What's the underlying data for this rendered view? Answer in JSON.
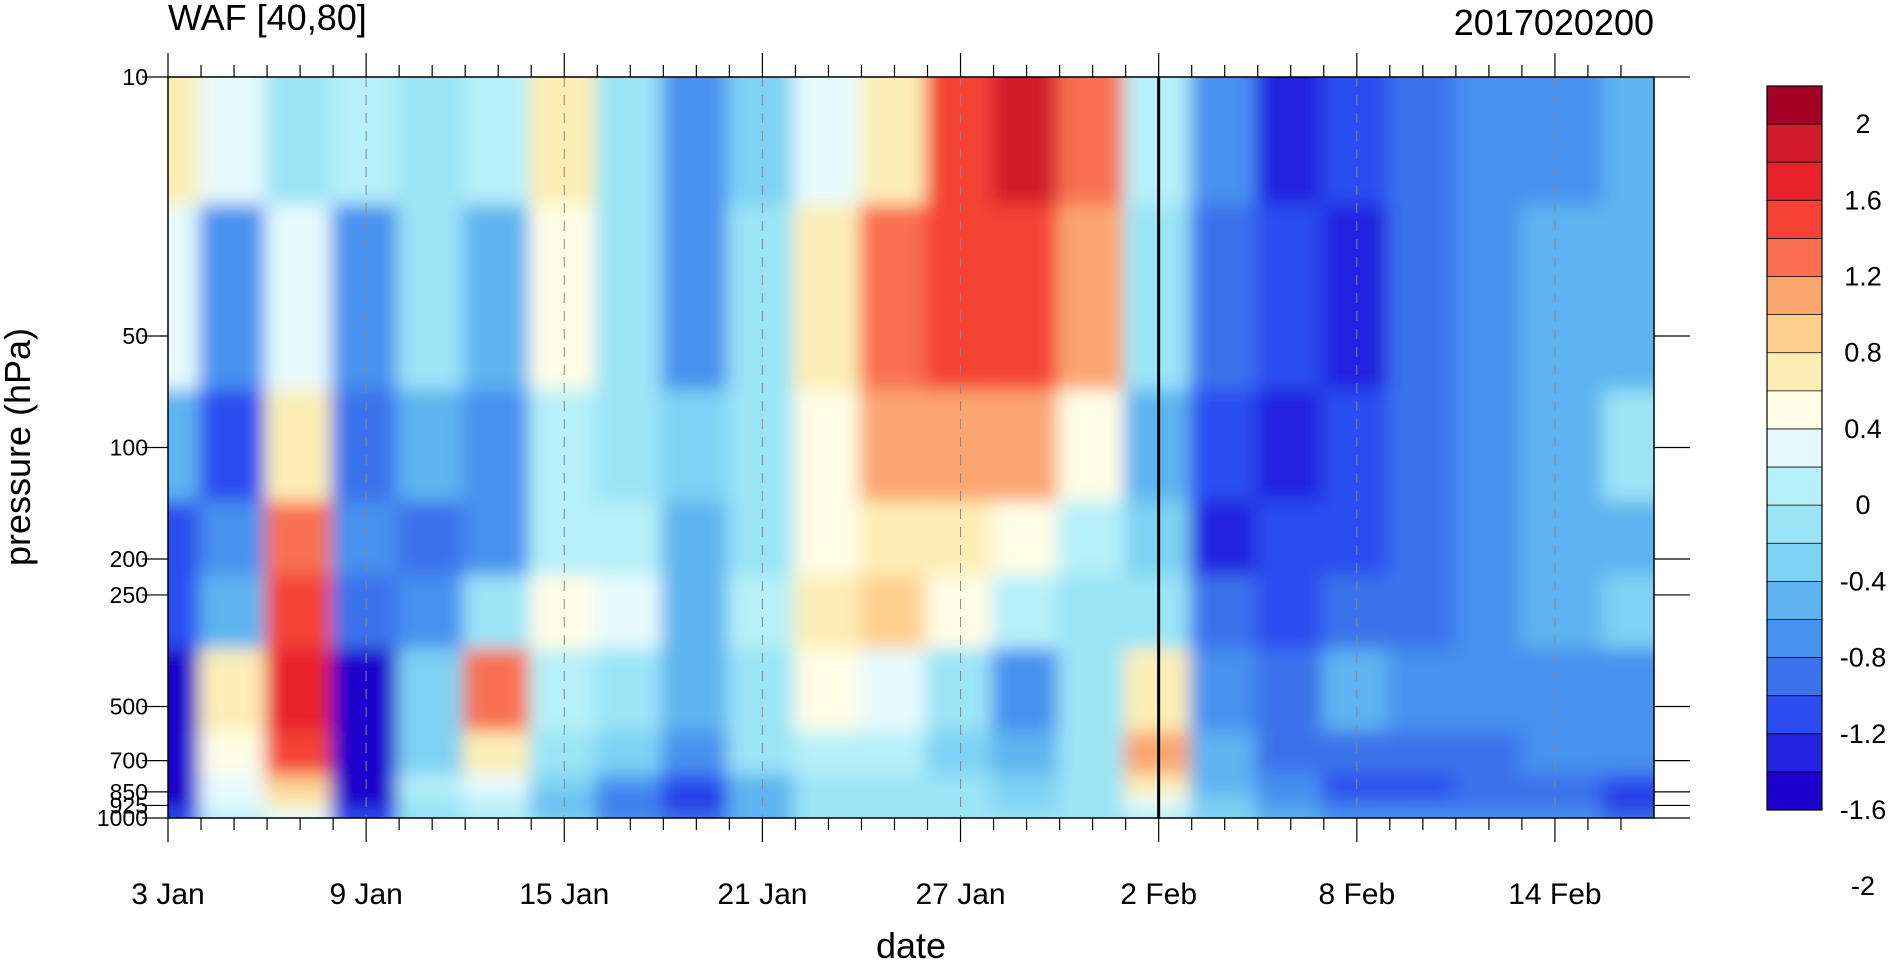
{
  "chart_data": {
    "type": "heatmap",
    "title": "WAF [40,80]",
    "subtitle": "2017020200",
    "xlabel": "date",
    "ylabel": "pressure (hPa)",
    "x_tick_labels": [
      "3 Jan",
      "9 Jan",
      "15 Jan",
      "21 Jan",
      "27 Jan",
      "2 Feb",
      "8 Feb",
      "14 Feb"
    ],
    "x_range_days_from_3jan": [
      0,
      45
    ],
    "y_scale": "log",
    "y_reversed": true,
    "y_range": [
      10,
      1000
    ],
    "y_tick_labels": [
      "10",
      "50",
      "100",
      "200",
      "250",
      "500",
      "700",
      "850",
      "925",
      "1000"
    ],
    "y_levels": [
      10,
      50,
      100,
      200,
      250,
      500,
      700,
      850,
      925,
      1000
    ],
    "analysis_date_line": "2 Feb",
    "colorbar": {
      "labels": [
        "2",
        "1.6",
        "1.2",
        "0.8",
        "0.4",
        "0",
        "-0.4",
        "-0.8",
        "-1.2",
        "-1.6",
        "-2"
      ],
      "label_values": [
        2,
        1.6,
        1.2,
        0.8,
        0.4,
        0,
        -0.4,
        -0.8,
        -1.2,
        -1.6,
        -2
      ],
      "colors": [
        "#a50026",
        "#d21c2c",
        "#e8222b",
        "#f44336",
        "#f8704f",
        "#fba56f",
        "#fdd08f",
        "#fdeeb5",
        "#fffde6",
        "#e6fafd",
        "#b6f0f8",
        "#9ae4f6",
        "#7ed2f3",
        "#5db4f0",
        "#4791ef",
        "#3a72eb",
        "#2b4df0",
        "#2424e0",
        "#1e00cc"
      ]
    },
    "x_days": [
      0,
      2,
      4,
      6,
      8,
      10,
      12,
      14,
      16,
      18,
      20,
      22,
      24,
      26,
      28,
      30,
      32,
      34,
      36,
      38,
      40,
      42,
      45
    ],
    "series": [
      {
        "level": 10,
        "values": [
          0.9,
          0.4,
          0.0,
          0.2,
          0.1,
          0.2,
          0.9,
          0.0,
          -0.6,
          -0.2,
          0.4,
          0.8,
          1.6,
          2.1,
          1.5,
          0.3,
          -0.5,
          -1.2,
          -0.9,
          -0.7,
          -0.6,
          -0.5,
          -0.4
        ]
      },
      {
        "level": 50,
        "values": [
          0.4,
          -0.6,
          0.4,
          -0.6,
          0.0,
          -0.4,
          0.6,
          0.1,
          -0.5,
          0.1,
          0.8,
          1.4,
          1.6,
          1.6,
          1.3,
          0.0,
          -0.7,
          -0.9,
          -1.1,
          -0.8,
          -0.5,
          -0.4,
          -0.3
        ]
      },
      {
        "level": 100,
        "values": [
          -0.4,
          -0.9,
          0.8,
          -0.8,
          -0.4,
          -0.6,
          0.2,
          0.0,
          -0.2,
          0.0,
          0.6,
          1.2,
          1.3,
          1.2,
          0.6,
          -0.3,
          -1.0,
          -1.1,
          -1.0,
          -0.8,
          -0.5,
          -0.4,
          0.0
        ]
      },
      {
        "level": 200,
        "values": [
          -0.9,
          -0.5,
          1.4,
          -0.6,
          -0.7,
          -0.5,
          0.3,
          0.2,
          -0.4,
          0.0,
          0.6,
          0.9,
          0.8,
          0.6,
          0.2,
          -0.2,
          -1.1,
          -1.0,
          -1.0,
          -0.8,
          -0.5,
          -0.4,
          -0.3
        ]
      },
      {
        "level": 250,
        "values": [
          -1.0,
          -0.4,
          1.6,
          -0.8,
          -0.5,
          0.1,
          0.6,
          0.4,
          -0.3,
          0.2,
          0.8,
          1.1,
          0.6,
          0.3,
          0.0,
          0.0,
          -0.8,
          -1.0,
          -0.8,
          -0.7,
          -0.5,
          -0.4,
          -0.2
        ]
      },
      {
        "level": 500,
        "values": [
          -1.4,
          0.9,
          1.9,
          -1.4,
          -0.2,
          1.4,
          0.3,
          0.0,
          -0.4,
          0.1,
          0.6,
          0.5,
          0.1,
          -0.6,
          0.1,
          0.9,
          -0.5,
          -0.8,
          -0.3,
          -0.6,
          -0.5,
          -0.5,
          -0.6
        ]
      },
      {
        "level": 700,
        "values": [
          -1.5,
          0.7,
          1.7,
          -1.4,
          -0.1,
          0.9,
          0.1,
          -0.2,
          -0.6,
          0.0,
          0.3,
          0.2,
          -0.1,
          -0.4,
          0.0,
          1.3,
          -0.4,
          -0.7,
          -0.8,
          -0.8,
          -0.7,
          -0.6,
          -0.6
        ]
      },
      {
        "level": 850,
        "values": [
          -1.6,
          0.5,
          1.0,
          -1.3,
          0.2,
          0.5,
          -0.2,
          -0.6,
          -1.0,
          -0.3,
          0.1,
          0.0,
          0.0,
          -0.2,
          0.0,
          0.8,
          -0.3,
          -0.6,
          -0.9,
          -0.9,
          -0.8,
          -0.7,
          -1.0
        ]
      },
      {
        "level": 925,
        "values": [
          -1.3,
          0.4,
          0.8,
          -1.5,
          0.1,
          0.3,
          -0.3,
          -0.7,
          -1.2,
          -0.4,
          0.0,
          0.1,
          0.0,
          -0.1,
          0.1,
          0.5,
          -0.2,
          -0.5,
          -0.7,
          -0.8,
          -0.8,
          -0.8,
          -1.2
        ]
      },
      {
        "level": 1000,
        "values": [
          -1.0,
          0.2,
          0.5,
          -1.0,
          0.0,
          0.2,
          -0.2,
          -0.5,
          -0.8,
          -0.3,
          0.0,
          0.0,
          0.0,
          0.0,
          0.0,
          0.3,
          -0.2,
          -0.4,
          -0.6,
          -0.6,
          -0.6,
          -0.6,
          -0.8
        ]
      }
    ]
  }
}
